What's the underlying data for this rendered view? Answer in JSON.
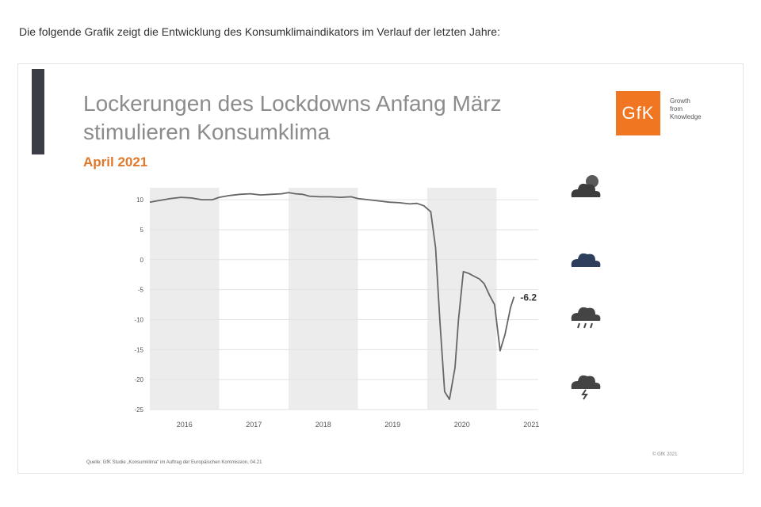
{
  "intro_text": "Die folgende Grafik zeigt die Entwicklung des Konsumklimaindikators im Verlauf der letzten Jahre:",
  "chart_card": {
    "title_line1": "Lockerungen des Lockdowns Anfang März",
    "title_line2": "stimulieren Konsumklima",
    "subtitle": "April 2021",
    "logo_text": "GfK",
    "logo_tagline": [
      "Growth",
      "from",
      "Knowledge"
    ],
    "source_text": "Quelle: GfK Studie „Konsumklima“ im Auftrag der Europäischen Kommission, 04.21",
    "copyright_text": "© GfK 2021",
    "colors": {
      "title": "#8c8c8c",
      "subtitle": "#e0782a",
      "logo": "#f07622",
      "line": "#666666",
      "shade": "#ececec",
      "side_bar": "#3b3e44"
    },
    "weather_icons": [
      "sun-cloud-icon",
      "cloud-icon",
      "rain-cloud-icon",
      "storm-cloud-icon"
    ]
  },
  "chart_data": {
    "type": "line",
    "title": "Lockerungen des Lockdowns Anfang März stimulieren Konsumklima",
    "subtitle": "April 2021",
    "xlabel": "",
    "ylabel": "",
    "x_ticks": [
      "2016",
      "2017",
      "2018",
      "2019",
      "2020",
      "2021"
    ],
    "y_ticks": [
      "10",
      "5",
      "0",
      "-5",
      "-10",
      "-15",
      "-20",
      "-25"
    ],
    "ylim": [
      -25,
      12
    ],
    "xlim": [
      2016.0,
      2021.6
    ],
    "shaded_years": [
      2016,
      2018,
      2020
    ],
    "end_label": "-6.2",
    "grid": true,
    "series": [
      {
        "x": [
          2016.0,
          2016.1,
          2016.2,
          2016.3,
          2016.45,
          2016.6,
          2016.75,
          2016.9,
          2017.0,
          2017.15,
          2017.3,
          2017.45,
          2017.6,
          2017.75,
          2017.9,
          2018.0,
          2018.1,
          2018.2,
          2018.3,
          2018.45,
          2018.6,
          2018.75,
          2018.9,
          2019.0,
          2019.15,
          2019.3,
          2019.45,
          2019.6,
          2019.75,
          2019.85,
          2019.95,
          2020.05,
          2020.12,
          2020.18,
          2020.25,
          2020.32,
          2020.4,
          2020.45,
          2020.52,
          2020.6,
          2020.68,
          2020.75,
          2020.82,
          2020.9,
          2020.97,
          2021.05,
          2021.12,
          2021.2,
          2021.25
        ],
        "y": [
          9.6,
          9.8,
          10.0,
          10.2,
          10.4,
          10.3,
          10.0,
          10.0,
          10.4,
          10.7,
          10.9,
          11.0,
          10.8,
          10.9,
          11.0,
          11.2,
          11.0,
          10.9,
          10.6,
          10.5,
          10.5,
          10.4,
          10.5,
          10.2,
          10.0,
          9.8,
          9.6,
          9.5,
          9.3,
          9.4,
          9.0,
          8.0,
          2.0,
          -10.0,
          -22.0,
          -23.3,
          -18.0,
          -10.0,
          -2.0,
          -2.3,
          -2.8,
          -3.2,
          -4.0,
          -6.0,
          -7.5,
          -15.2,
          -12.5,
          -8.0,
          -6.2
        ]
      }
    ]
  }
}
